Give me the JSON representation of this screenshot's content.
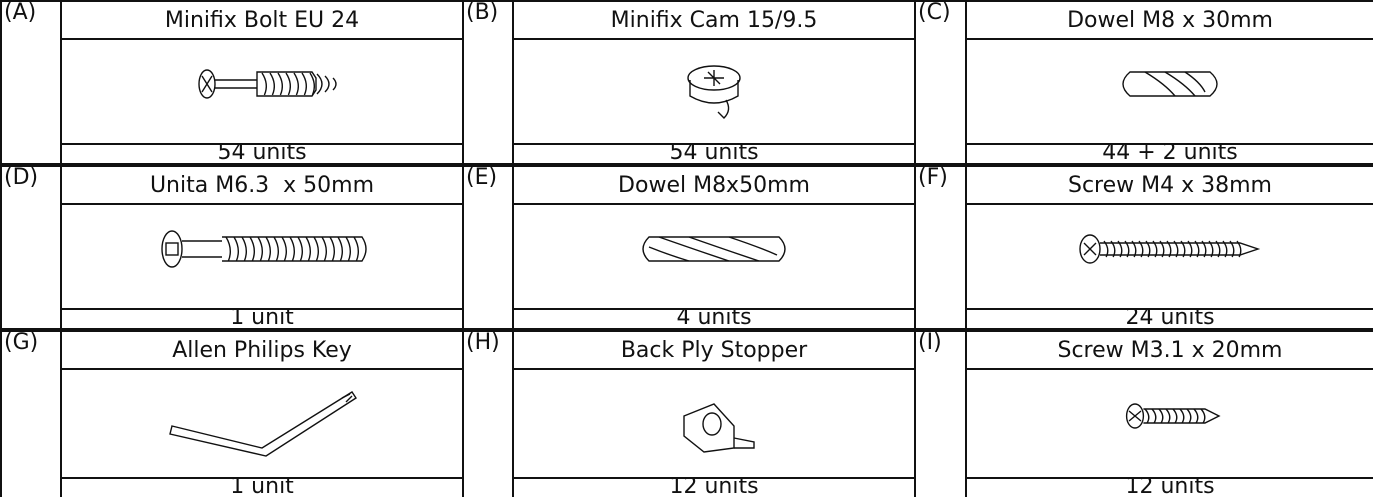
{
  "items": [
    {
      "letter": "(A)",
      "name": "Minifix Bolt EU 24",
      "quantity": "54 units"
    },
    {
      "letter": "(B)",
      "name": "Minifix Cam 15/9.5",
      "quantity": "54 units"
    },
    {
      "letter": "(C)",
      "name": "Dowel M8 x 30mm",
      "quantity": "44 + 2 units"
    },
    {
      "letter": "(D)",
      "name": "Unita M6.3  x 50mm",
      "quantity": "1 unit"
    },
    {
      "letter": "(E)",
      "name": "Dowel M8x50mm",
      "quantity": "4 units"
    },
    {
      "letter": "(F)",
      "name": "Screw M4 x 38mm",
      "quantity": "24 units"
    },
    {
      "letter": "(G)",
      "name": "Allen Philips Key",
      "quantity": "1 unit"
    },
    {
      "letter": "(H)",
      "name": "Back Ply Stopper",
      "quantity": "12 units"
    },
    {
      "letter": "(I)",
      "name": "Screw M3.1 x 20mm",
      "quantity": "12 units"
    }
  ]
}
